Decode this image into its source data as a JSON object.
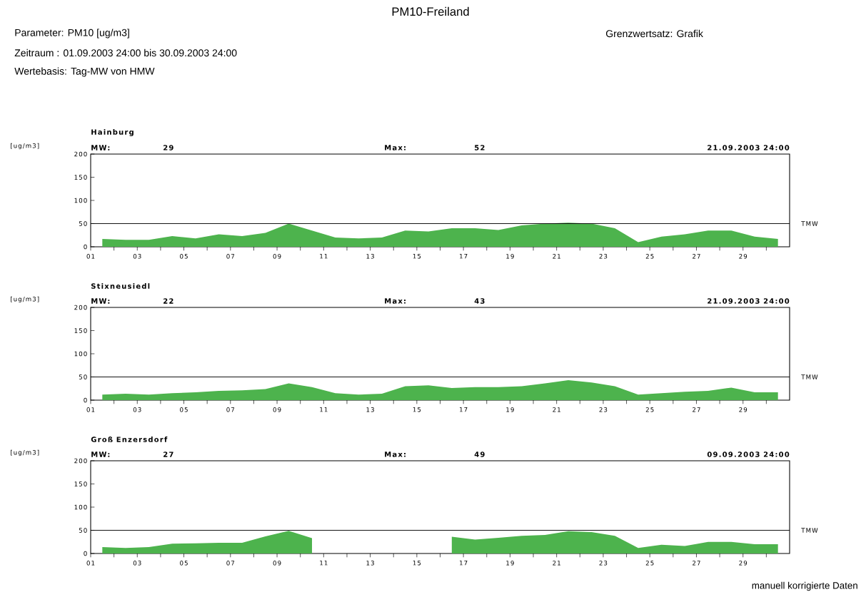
{
  "chart_data": [
    {
      "type": "area",
      "title": "Hainburg",
      "ylabel": "[ug/m3]",
      "color": "#4db34d",
      "x": [
        1.5,
        2.5,
        3.5,
        4.5,
        5.5,
        6.5,
        7.5,
        8.5,
        9.5,
        10.5,
        11.5,
        12.5,
        13.5,
        14.5,
        15.5,
        16.5,
        17.5,
        18.5,
        19.5,
        20.5,
        21.5,
        22.5,
        23.5,
        24.5,
        25.5,
        26.5,
        27.5,
        28.5,
        29.5,
        30.5
      ],
      "values": [
        17,
        15,
        15,
        23,
        18,
        27,
        23,
        30,
        50,
        35,
        20,
        18,
        20,
        35,
        33,
        40,
        40,
        36,
        46,
        50,
        52,
        50,
        40,
        10,
        22,
        27,
        35,
        35,
        22,
        17
      ],
      "xlim": [
        1,
        31
      ],
      "xticks": [
        {
          "value": 1,
          "label": "01"
        },
        {
          "value": 2,
          "label": null
        },
        {
          "value": 3,
          "label": "03"
        },
        {
          "value": 4,
          "label": null
        },
        {
          "value": 5,
          "label": "05"
        },
        {
          "value": 6,
          "label": null
        },
        {
          "value": 7,
          "label": "07"
        },
        {
          "value": 8,
          "label": null
        },
        {
          "value": 9,
          "label": "09"
        },
        {
          "value": 10,
          "label": null
        },
        {
          "value": 11,
          "label": "11"
        },
        {
          "value": 12,
          "label": null
        },
        {
          "value": 13,
          "label": "13"
        },
        {
          "value": 14,
          "label": null
        },
        {
          "value": 15,
          "label": "15"
        },
        {
          "value": 16,
          "label": null
        },
        {
          "value": 17,
          "label": "17"
        },
        {
          "value": 18,
          "label": null
        },
        {
          "value": 19,
          "label": "19"
        },
        {
          "value": 20,
          "label": null
        },
        {
          "value": 21,
          "label": "21"
        },
        {
          "value": 22,
          "label": null
        },
        {
          "value": 23,
          "label": "23"
        },
        {
          "value": 24,
          "label": null
        },
        {
          "value": 25,
          "label": "25"
        },
        {
          "value": 26,
          "label": null
        },
        {
          "value": 27,
          "label": "27"
        },
        {
          "value": 28,
          "label": null
        },
        {
          "value": 29,
          "label": "29"
        },
        {
          "value": 30,
          "label": null
        }
      ],
      "ylim": [
        0,
        200
      ],
      "yticks": [
        0,
        50,
        100,
        150,
        200
      ],
      "ref_lines": [
        {
          "axis": "y",
          "value": 50,
          "label": "TMW"
        }
      ],
      "annotations": [
        "MW:",
        "29",
        "Max:",
        "52",
        "21.09.2003 24:00",
        "PM10-Freiland",
        "Parameter: PM10 [ug/m3]",
        "Zeitraum  : 01.09.2003 24:00 bis 30.09.2003 24:00",
        "Wertebasis: Tag-MW von HMW",
        "Grenzwertsatz: Grafik"
      ]
    },
    {
      "type": "area",
      "title": "Stixneusiedl",
      "ylabel": "[ug/m3]",
      "color": "#4db34d",
      "x": [
        1.5,
        2.5,
        3.5,
        4.5,
        5.5,
        6.5,
        7.5,
        8.5,
        9.5,
        10.5,
        11.5,
        12.5,
        13.5,
        14.5,
        15.5,
        16.5,
        17.5,
        18.5,
        19.5,
        20.5,
        21.5,
        22.5,
        23.5,
        24.5,
        25.5,
        26.5,
        27.5,
        28.5,
        29.5,
        30.5
      ],
      "values": [
        12,
        14,
        12,
        15,
        17,
        20,
        21,
        24,
        36,
        28,
        15,
        12,
        14,
        30,
        32,
        26,
        28,
        28,
        30,
        36,
        43,
        38,
        30,
        12,
        15,
        18,
        20,
        27,
        17,
        17
      ],
      "xlim": [
        1,
        31
      ],
      "xticks": [
        {
          "value": 1,
          "label": "01"
        },
        {
          "value": 2,
          "label": null
        },
        {
          "value": 3,
          "label": "03"
        },
        {
          "value": 4,
          "label": null
        },
        {
          "value": 5,
          "label": "05"
        },
        {
          "value": 6,
          "label": null
        },
        {
          "value": 7,
          "label": "07"
        },
        {
          "value": 8,
          "label": null
        },
        {
          "value": 9,
          "label": "09"
        },
        {
          "value": 10,
          "label": null
        },
        {
          "value": 11,
          "label": "11"
        },
        {
          "value": 12,
          "label": null
        },
        {
          "value": 13,
          "label": "13"
        },
        {
          "value": 14,
          "label": null
        },
        {
          "value": 15,
          "label": "15"
        },
        {
          "value": 16,
          "label": null
        },
        {
          "value": 17,
          "label": "17"
        },
        {
          "value": 18,
          "label": null
        },
        {
          "value": 19,
          "label": "19"
        },
        {
          "value": 20,
          "label": null
        },
        {
          "value": 21,
          "label": "21"
        },
        {
          "value": 22,
          "label": null
        },
        {
          "value": 23,
          "label": "23"
        },
        {
          "value": 24,
          "label": null
        },
        {
          "value": 25,
          "label": "25"
        },
        {
          "value": 26,
          "label": null
        },
        {
          "value": 27,
          "label": "27"
        },
        {
          "value": 28,
          "label": null
        },
        {
          "value": 29,
          "label": "29"
        },
        {
          "value": 30,
          "label": null
        }
      ],
      "ylim": [
        0,
        200
      ],
      "yticks": [
        0,
        50,
        100,
        150,
        200
      ],
      "ref_lines": [
        {
          "axis": "y",
          "value": 50,
          "label": "TMW"
        }
      ],
      "annotations": [
        "MW:",
        "22",
        "Max:",
        "43",
        "21.09.2003 24:00"
      ]
    },
    {
      "type": "area",
      "title": "Groß Enzersdorf",
      "ylabel": "[ug/m3]",
      "color": "#4db34d",
      "x": [
        1.5,
        2.5,
        3.5,
        4.5,
        5.5,
        6.5,
        7.5,
        8.5,
        9.5,
        10.5,
        11.5,
        12.5,
        13.5,
        14.5,
        15.5,
        16.5,
        17.5,
        18.5,
        19.5,
        20.5,
        21.5,
        22.5,
        23.5,
        24.5,
        25.5,
        26.5,
        27.5,
        28.5,
        29.5,
        30.5
      ],
      "values": [
        14,
        12,
        14,
        21,
        22,
        23,
        23,
        37,
        49,
        33,
        null,
        null,
        null,
        null,
        null,
        36,
        30,
        34,
        38,
        40,
        48,
        46,
        38,
        12,
        19,
        16,
        25,
        25,
        20,
        20
      ],
      "xlim": [
        1,
        31
      ],
      "xticks": [
        {
          "value": 1,
          "label": "01"
        },
        {
          "value": 2,
          "label": null
        },
        {
          "value": 3,
          "label": "03"
        },
        {
          "value": 4,
          "label": null
        },
        {
          "value": 5,
          "label": "05"
        },
        {
          "value": 6,
          "label": null
        },
        {
          "value": 7,
          "label": "07"
        },
        {
          "value": 8,
          "label": null
        },
        {
          "value": 9,
          "label": "09"
        },
        {
          "value": 10,
          "label": null
        },
        {
          "value": 11,
          "label": "11"
        },
        {
          "value": 12,
          "label": null
        },
        {
          "value": 13,
          "label": "13"
        },
        {
          "value": 14,
          "label": null
        },
        {
          "value": 15,
          "label": "15"
        },
        {
          "value": 16,
          "label": null
        },
        {
          "value": 17,
          "label": "17"
        },
        {
          "value": 18,
          "label": null
        },
        {
          "value": 19,
          "label": "19"
        },
        {
          "value": 20,
          "label": null
        },
        {
          "value": 21,
          "label": "21"
        },
        {
          "value": 22,
          "label": null
        },
        {
          "value": 23,
          "label": "23"
        },
        {
          "value": 24,
          "label": null
        },
        {
          "value": 25,
          "label": "25"
        },
        {
          "value": 26,
          "label": null
        },
        {
          "value": 27,
          "label": "27"
        },
        {
          "value": 28,
          "label": null
        },
        {
          "value": 29,
          "label": "29"
        },
        {
          "value": 30,
          "label": null
        }
      ],
      "ylim": [
        0,
        200
      ],
      "yticks": [
        0,
        50,
        100,
        150,
        200
      ],
      "ref_lines": [
        {
          "axis": "y",
          "value": 50,
          "label": "TMW"
        }
      ],
      "annotations": [
        "MW:",
        "27",
        "Max:",
        "49",
        "09.09.2003 24:00",
        "manuell korrigierte Daten"
      ]
    }
  ]
}
